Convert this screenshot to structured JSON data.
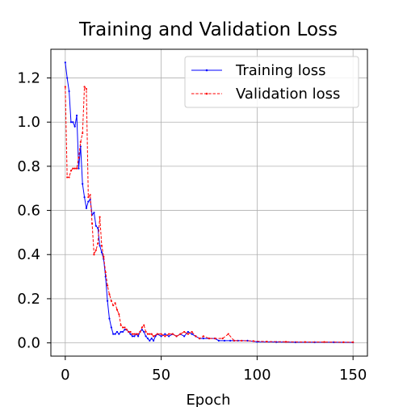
{
  "chart_data": {
    "type": "line",
    "title": "Training and Validation Loss",
    "xlabel": "Epoch",
    "ylabel": "",
    "xlim": [
      -7.5,
      157.5
    ],
    "ylim": [
      -0.06,
      1.33
    ],
    "xticks": [
      0,
      50,
      100,
      150
    ],
    "yticks": [
      0.0,
      0.2,
      0.4,
      0.6,
      0.8,
      1.0,
      1.2
    ],
    "grid": true,
    "legend_position": "top-right",
    "series": [
      {
        "name": "Training loss",
        "color": "#0000ff",
        "style": "solid",
        "points": [
          [
            0,
            1.27
          ],
          [
            1,
            1.2
          ],
          [
            2,
            1.14
          ],
          [
            3,
            1.0
          ],
          [
            4,
            1.0
          ],
          [
            5,
            0.98
          ],
          [
            6,
            1.03
          ],
          [
            7,
            0.79
          ],
          [
            8,
            0.89
          ],
          [
            9,
            0.72
          ],
          [
            10,
            0.66
          ],
          [
            11,
            0.61
          ],
          [
            12,
            0.64
          ],
          [
            13,
            0.65
          ],
          [
            14,
            0.58
          ],
          [
            15,
            0.59
          ],
          [
            16,
            0.53
          ],
          [
            17,
            0.52
          ],
          [
            18,
            0.44
          ],
          [
            19,
            0.41
          ],
          [
            20,
            0.38
          ],
          [
            21,
            0.3
          ],
          [
            22,
            0.19
          ],
          [
            23,
            0.11
          ],
          [
            24,
            0.07
          ],
          [
            25,
            0.04
          ],
          [
            26,
            0.04
          ],
          [
            27,
            0.05
          ],
          [
            28,
            0.04
          ],
          [
            29,
            0.05
          ],
          [
            30,
            0.05
          ],
          [
            31,
            0.06
          ],
          [
            32,
            0.06
          ],
          [
            33,
            0.05
          ],
          [
            34,
            0.04
          ],
          [
            35,
            0.03
          ],
          [
            36,
            0.03
          ],
          [
            37,
            0.04
          ],
          [
            38,
            0.03
          ],
          [
            39,
            0.05
          ],
          [
            40,
            0.06
          ],
          [
            41,
            0.05
          ],
          [
            42,
            0.03
          ],
          [
            43,
            0.02
          ],
          [
            44,
            0.01
          ],
          [
            45,
            0.02
          ],
          [
            46,
            0.01
          ],
          [
            47,
            0.03
          ],
          [
            48,
            0.04
          ],
          [
            50,
            0.03
          ],
          [
            52,
            0.04
          ],
          [
            54,
            0.03
          ],
          [
            56,
            0.04
          ],
          [
            58,
            0.03
          ],
          [
            60,
            0.04
          ],
          [
            62,
            0.03
          ],
          [
            64,
            0.05
          ],
          [
            66,
            0.04
          ],
          [
            68,
            0.03
          ],
          [
            70,
            0.02
          ],
          [
            72,
            0.02
          ],
          [
            75,
            0.02
          ],
          [
            78,
            0.02
          ],
          [
            80,
            0.01
          ],
          [
            83,
            0.01
          ],
          [
            86,
            0.01
          ],
          [
            88,
            0.01
          ],
          [
            90,
            0.01
          ],
          [
            95,
            0.01
          ],
          [
            100,
            0.005
          ],
          [
            110,
            0.004
          ],
          [
            120,
            0.003
          ],
          [
            130,
            0.003
          ],
          [
            140,
            0.003
          ],
          [
            150,
            0.002
          ]
        ]
      },
      {
        "name": "Validation loss",
        "color": "#ff0000",
        "style": "dashed",
        "points": [
          [
            0,
            1.16
          ],
          [
            1,
            0.75
          ],
          [
            2,
            0.75
          ],
          [
            3,
            0.78
          ],
          [
            4,
            0.79
          ],
          [
            5,
            0.79
          ],
          [
            6,
            0.79
          ],
          [
            7,
            0.84
          ],
          [
            8,
            0.91
          ],
          [
            9,
            0.95
          ],
          [
            10,
            1.16
          ],
          [
            11,
            1.15
          ],
          [
            12,
            0.66
          ],
          [
            13,
            0.67
          ],
          [
            14,
            0.54
          ],
          [
            15,
            0.4
          ],
          [
            16,
            0.42
          ],
          [
            17,
            0.45
          ],
          [
            18,
            0.57
          ],
          [
            19,
            0.44
          ],
          [
            20,
            0.39
          ],
          [
            21,
            0.32
          ],
          [
            22,
            0.26
          ],
          [
            23,
            0.22
          ],
          [
            24,
            0.19
          ],
          [
            25,
            0.17
          ],
          [
            26,
            0.18
          ],
          [
            27,
            0.15
          ],
          [
            28,
            0.13
          ],
          [
            29,
            0.08
          ],
          [
            30,
            0.07
          ],
          [
            31,
            0.07
          ],
          [
            32,
            0.06
          ],
          [
            33,
            0.05
          ],
          [
            34,
            0.05
          ],
          [
            35,
            0.04
          ],
          [
            36,
            0.04
          ],
          [
            37,
            0.04
          ],
          [
            38,
            0.04
          ],
          [
            39,
            0.05
          ],
          [
            40,
            0.07
          ],
          [
            41,
            0.08
          ],
          [
            42,
            0.05
          ],
          [
            43,
            0.04
          ],
          [
            44,
            0.04
          ],
          [
            45,
            0.04
          ],
          [
            46,
            0.03
          ],
          [
            48,
            0.04
          ],
          [
            50,
            0.04
          ],
          [
            52,
            0.03
          ],
          [
            54,
            0.04
          ],
          [
            56,
            0.04
          ],
          [
            58,
            0.03
          ],
          [
            60,
            0.04
          ],
          [
            62,
            0.05
          ],
          [
            64,
            0.04
          ],
          [
            66,
            0.05
          ],
          [
            68,
            0.03
          ],
          [
            70,
            0.02
          ],
          [
            72,
            0.03
          ],
          [
            75,
            0.02
          ],
          [
            78,
            0.02
          ],
          [
            82,
            0.02
          ],
          [
            85,
            0.04
          ],
          [
            88,
            0.01
          ],
          [
            92,
            0.01
          ],
          [
            98,
            0.008
          ],
          [
            105,
            0.006
          ],
          [
            115,
            0.005
          ],
          [
            125,
            0.004
          ],
          [
            135,
            0.004
          ],
          [
            145,
            0.003
          ],
          [
            150,
            0.003
          ]
        ]
      }
    ]
  }
}
